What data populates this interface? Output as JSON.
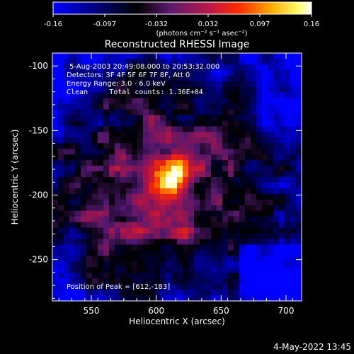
{
  "colorbar": {
    "min": -0.16,
    "max": 0.16,
    "ticks": [
      "-0.16",
      "-0.097",
      "-0.032",
      "0.032",
      "0.097",
      "0.16"
    ],
    "units_label": "(photons cm⁻² s⁻¹ asec⁻²)",
    "colors": [
      "#0000ff",
      "#000000",
      "#7a1b6a",
      "#ff2a00",
      "#ffe54a",
      "#ffffff"
    ]
  },
  "chart_data": {
    "type": "heatmap",
    "title": "Reconstructed RHESSI Image",
    "xlabel": "Heliocentric X (arcsec)",
    "ylabel": "Heliocentric Y (arcsec)",
    "xlim": [
      520,
      712
    ],
    "ylim": [
      -282,
      -90
    ],
    "xticks": [
      550,
      600,
      650,
      700
    ],
    "yticks": [
      -100,
      -150,
      -200,
      -250
    ],
    "annotations": [
      "5-Aug-2003 20:49:08.000 to 20:53:32.000",
      "Detectors: 3F 4F 5F 6F 7F 8F, Att 0",
      "Energy Range: 3.0 - 6.0 keV",
      "Clean     Total counts: 1.36E+04"
    ],
    "peak_label": "Position of Peak = [612,-183]",
    "peak": {
      "x": 612,
      "y": -183,
      "value": 0.16
    }
  },
  "footer": {
    "timestamp": "4-May-2022 13:45"
  }
}
